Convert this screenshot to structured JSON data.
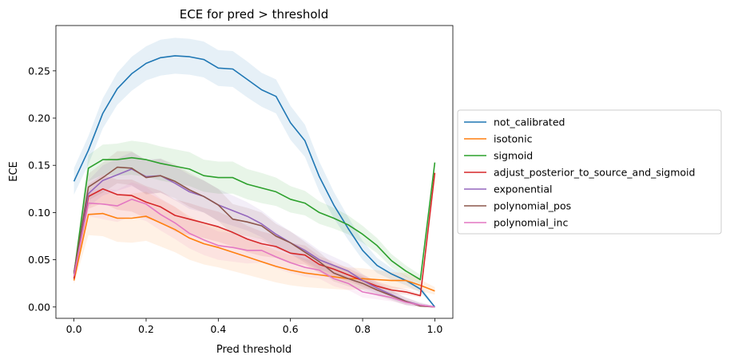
{
  "chart_data": {
    "type": "line",
    "title": "ECE for pred > threshold",
    "xlabel": "Pred threshold",
    "ylabel": "ECE",
    "xlim": [
      -0.05,
      1.05
    ],
    "ylim": [
      -0.012,
      0.298
    ],
    "xticks": [
      0.0,
      0.2,
      0.4,
      0.6,
      0.8,
      1.0
    ],
    "xtick_labels": [
      "0.0",
      "0.2",
      "0.4",
      "0.6",
      "0.8",
      "1.0"
    ],
    "yticks": [
      0.0,
      0.05,
      0.1,
      0.15,
      0.2,
      0.25
    ],
    "ytick_labels": [
      "0.00",
      "0.05",
      "0.10",
      "0.15",
      "0.20",
      "0.25"
    ],
    "grid": false,
    "legend_position": "outside-right",
    "x": [
      0.0,
      0.04,
      0.08,
      0.12,
      0.16,
      0.2,
      0.24,
      0.28,
      0.32,
      0.36,
      0.4,
      0.44,
      0.48,
      0.52,
      0.56,
      0.6,
      0.64,
      0.68,
      0.72,
      0.76,
      0.8,
      0.84,
      0.88,
      0.92,
      0.96,
      1.0
    ],
    "series": [
      {
        "name": "not_calibrated",
        "color": "#1f77b4",
        "values": [
          0.133,
          0.166,
          0.205,
          0.231,
          0.247,
          0.258,
          0.264,
          0.266,
          0.265,
          0.262,
          0.253,
          0.252,
          0.241,
          0.23,
          0.223,
          0.195,
          0.176,
          0.138,
          0.108,
          0.083,
          0.06,
          0.044,
          0.035,
          0.028,
          0.019,
          0.0
        ],
        "band": [
          0.014,
          0.015,
          0.016,
          0.017,
          0.018,
          0.018,
          0.019,
          0.019,
          0.019,
          0.019,
          0.019,
          0.019,
          0.019,
          0.018,
          0.018,
          0.018,
          0.017,
          0.016,
          0.014,
          0.012,
          0.01,
          0.008,
          0.006,
          0.005,
          0.004,
          0.001
        ]
      },
      {
        "name": "isotonic",
        "color": "#ff7f0e",
        "values": [
          0.028,
          0.098,
          0.099,
          0.094,
          0.094,
          0.096,
          0.089,
          0.082,
          0.073,
          0.067,
          0.063,
          0.058,
          0.053,
          0.048,
          0.043,
          0.039,
          0.036,
          0.034,
          0.032,
          0.03,
          0.03,
          0.029,
          0.028,
          0.028,
          0.023,
          0.017
        ],
        "band": [
          0.004,
          0.022,
          0.024,
          0.025,
          0.026,
          0.026,
          0.025,
          0.024,
          0.023,
          0.022,
          0.021,
          0.02,
          0.019,
          0.018,
          0.017,
          0.016,
          0.015,
          0.014,
          0.013,
          0.012,
          0.011,
          0.01,
          0.009,
          0.008,
          0.006,
          0.004
        ]
      },
      {
        "name": "sigmoid",
        "color": "#2ca02c",
        "values": [
          0.035,
          0.147,
          0.156,
          0.156,
          0.158,
          0.156,
          0.152,
          0.149,
          0.146,
          0.139,
          0.137,
          0.137,
          0.13,
          0.126,
          0.122,
          0.114,
          0.11,
          0.1,
          0.094,
          0.087,
          0.077,
          0.065,
          0.049,
          0.038,
          0.029,
          0.153
        ],
        "band": [
          0.005,
          0.014,
          0.016,
          0.017,
          0.018,
          0.018,
          0.018,
          0.018,
          0.018,
          0.017,
          0.017,
          0.017,
          0.016,
          0.016,
          0.015,
          0.014,
          0.013,
          0.012,
          0.011,
          0.01,
          0.009,
          0.008,
          0.007,
          0.006,
          0.005,
          0.003
        ]
      },
      {
        "name": "adjust_posterior_to_source_and_sigmoid",
        "color": "#d62728",
        "values": [
          0.03,
          0.117,
          0.125,
          0.119,
          0.118,
          0.111,
          0.106,
          0.097,
          0.093,
          0.089,
          0.085,
          0.079,
          0.072,
          0.067,
          0.064,
          0.057,
          0.055,
          0.045,
          0.04,
          0.034,
          0.028,
          0.022,
          0.018,
          0.016,
          0.012,
          0.142
        ],
        "band": [
          0.004,
          0.013,
          0.015,
          0.016,
          0.017,
          0.017,
          0.017,
          0.017,
          0.017,
          0.016,
          0.016,
          0.015,
          0.014,
          0.013,
          0.012,
          0.011,
          0.01,
          0.009,
          0.008,
          0.007,
          0.006,
          0.005,
          0.004,
          0.003,
          0.002,
          0.002
        ]
      },
      {
        "name": "exponential",
        "color": "#9467bd",
        "values": [
          0.037,
          0.12,
          0.134,
          0.14,
          0.146,
          0.138,
          0.139,
          0.131,
          0.122,
          0.117,
          0.108,
          0.102,
          0.096,
          0.088,
          0.077,
          0.068,
          0.06,
          0.05,
          0.044,
          0.038,
          0.028,
          0.02,
          0.013,
          0.006,
          0.002,
          0.0
        ],
        "band": [
          0.004,
          0.014,
          0.016,
          0.017,
          0.018,
          0.018,
          0.018,
          0.018,
          0.018,
          0.017,
          0.017,
          0.016,
          0.015,
          0.014,
          0.013,
          0.012,
          0.011,
          0.01,
          0.009,
          0.008,
          0.007,
          0.006,
          0.005,
          0.004,
          0.003,
          0.001
        ]
      },
      {
        "name": "polynomial_pos",
        "color": "#8c564b",
        "values": [
          0.036,
          0.127,
          0.137,
          0.148,
          0.147,
          0.137,
          0.139,
          0.133,
          0.124,
          0.117,
          0.108,
          0.093,
          0.09,
          0.086,
          0.075,
          0.068,
          0.058,
          0.048,
          0.036,
          0.03,
          0.025,
          0.018,
          0.012,
          0.006,
          0.001,
          0.0
        ],
        "band": [
          0.004,
          0.014,
          0.016,
          0.017,
          0.018,
          0.018,
          0.018,
          0.018,
          0.018,
          0.017,
          0.017,
          0.016,
          0.015,
          0.014,
          0.013,
          0.012,
          0.011,
          0.01,
          0.009,
          0.008,
          0.007,
          0.006,
          0.005,
          0.004,
          0.003,
          0.001
        ]
      },
      {
        "name": "polynomial_inc",
        "color": "#e377c2",
        "values": [
          0.033,
          0.11,
          0.109,
          0.107,
          0.114,
          0.109,
          0.098,
          0.089,
          0.078,
          0.071,
          0.065,
          0.063,
          0.06,
          0.06,
          0.053,
          0.047,
          0.042,
          0.039,
          0.03,
          0.025,
          0.016,
          0.013,
          0.01,
          0.005,
          0.002,
          0.0
        ],
        "band": [
          0.004,
          0.014,
          0.016,
          0.017,
          0.018,
          0.018,
          0.017,
          0.017,
          0.016,
          0.016,
          0.015,
          0.015,
          0.014,
          0.013,
          0.012,
          0.011,
          0.01,
          0.009,
          0.008,
          0.007,
          0.006,
          0.005,
          0.004,
          0.003,
          0.002,
          0.001
        ]
      }
    ]
  }
}
